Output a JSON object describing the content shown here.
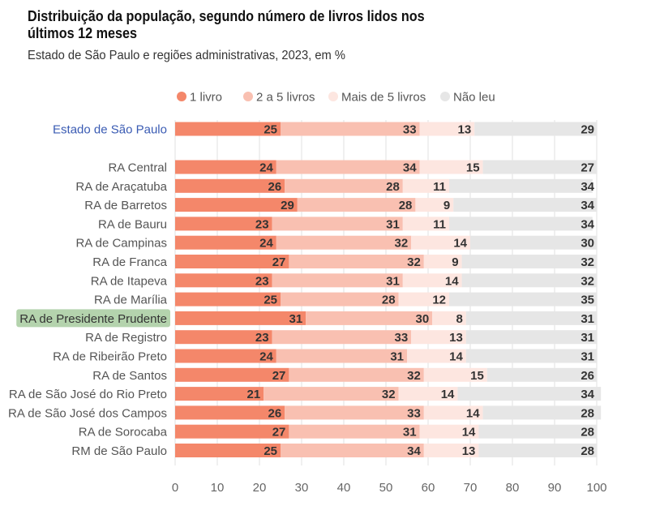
{
  "title": "Distribuição da população, segundo número de livros lidos nos últimos 12 meses",
  "subtitle": "Estado de São Paulo e regiões administrativas, 2023, em %",
  "colors": {
    "1 livro": "#f4876a",
    "2 a 5 livros": "#f9c0b1",
    "Mais de 5 livros": "#fde6e0",
    "Não leu": "#e6e6e6",
    "state_label": "#3a5bb3",
    "highlight_bg": "#b4d3ad"
  },
  "chart_data": {
    "type": "bar",
    "orientation": "horizontal",
    "stacked": true,
    "title": "Distribuição da população, segundo número de livros lidos nos últimos 12 meses",
    "subtitle": "Estado de São Paulo e regiões administrativas, 2023, em %",
    "legend_position": "top",
    "xlim": [
      0,
      100
    ],
    "x_ticks": [
      0,
      10,
      20,
      30,
      40,
      50,
      60,
      70,
      80,
      90,
      100
    ],
    "grid": true,
    "highlighted_category": "RA de Presidente Prudente",
    "categories": [
      "Estado de São Paulo",
      "RA Central",
      "RA de Araçatuba",
      "RA de Barretos",
      "RA de Bauru",
      "RA de Campinas",
      "RA de Franca",
      "RA de Itapeva",
      "RA de Marília",
      "RA de Presidente Prudente",
      "RA de Registro",
      "RA de Ribeirão Preto",
      "RA de Santos",
      "RA de São José do Rio Preto",
      "RA de São José dos Campos",
      "RA de Sorocaba",
      "RM de São Paulo"
    ],
    "series": [
      {
        "name": "1 livro",
        "values": [
          25,
          24,
          26,
          29,
          23,
          24,
          27,
          23,
          25,
          31,
          23,
          24,
          27,
          21,
          26,
          27,
          25
        ]
      },
      {
        "name": "2 a 5 livros",
        "values": [
          33,
          34,
          28,
          28,
          31,
          32,
          32,
          31,
          28,
          30,
          33,
          31,
          32,
          32,
          33,
          31,
          34
        ]
      },
      {
        "name": "Mais de 5 livros",
        "values": [
          13,
          15,
          11,
          9,
          11,
          14,
          9,
          14,
          12,
          8,
          13,
          14,
          15,
          14,
          14,
          14,
          13
        ]
      },
      {
        "name": "Não leu",
        "values": [
          29,
          27,
          34,
          34,
          34,
          30,
          32,
          32,
          35,
          31,
          31,
          31,
          26,
          34,
          28,
          28,
          28
        ]
      }
    ]
  }
}
